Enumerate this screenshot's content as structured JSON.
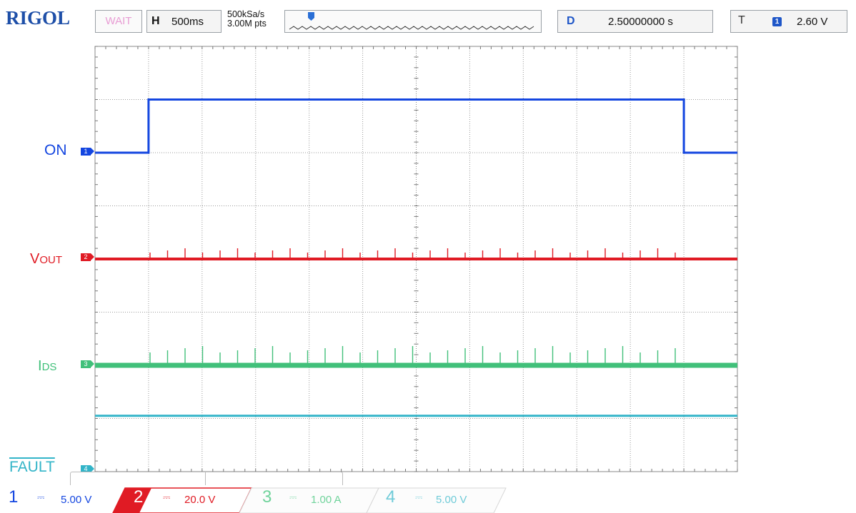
{
  "header": {
    "brand": "RIGOL",
    "run_status": "WAIT",
    "horizontal": {
      "key": "H",
      "timebase": "500ms"
    },
    "sampling": {
      "rate": "500kSa/s",
      "points": "3.00M pts"
    },
    "delay": {
      "key": "D",
      "value": "2.50000000 s"
    },
    "trigger": {
      "key": "T",
      "source": "1",
      "level": "2.60 V"
    }
  },
  "channels": {
    "ch1": {
      "number": "1",
      "label": "ON",
      "scale": "5.00 V",
      "color": "#1446e0"
    },
    "ch2": {
      "number": "2",
      "label_main": "V",
      "label_sub": "OUT",
      "scale": "20.0 V",
      "color": "#e01b24"
    },
    "ch3": {
      "number": "3",
      "label_main": "I",
      "label_sub": "DS",
      "scale": "1.00 A",
      "color": "#41c07a"
    },
    "ch4": {
      "number": "4",
      "label": "FAULT",
      "scale": "5.00 V",
      "color": "#32b4c8"
    }
  },
  "grid": {
    "divisions_x": 12,
    "divisions_y": 8
  },
  "chart_data": {
    "type": "line",
    "xlim": [
      0,
      12
    ],
    "ylim": [
      0,
      8
    ],
    "grid": true,
    "series": [
      {
        "name": "ON",
        "color": "#1446e0",
        "points": [
          [
            0,
            6.0
          ],
          [
            1,
            6.0
          ],
          [
            1,
            7.0
          ],
          [
            11,
            7.0
          ],
          [
            11,
            6.0
          ],
          [
            12,
            6.0
          ]
        ]
      },
      {
        "name": "VOUT",
        "color": "#e01b24",
        "points": [
          [
            0,
            4.0
          ],
          [
            12,
            4.0
          ]
        ]
      },
      {
        "name": "IDS",
        "color": "#41c07a",
        "points": [
          [
            0,
            2.0
          ],
          [
            12,
            2.0
          ]
        ]
      },
      {
        "name": "FAULT",
        "color": "#32b4c8",
        "points": [
          [
            0,
            1.05
          ],
          [
            12,
            1.05
          ]
        ]
      }
    ]
  }
}
